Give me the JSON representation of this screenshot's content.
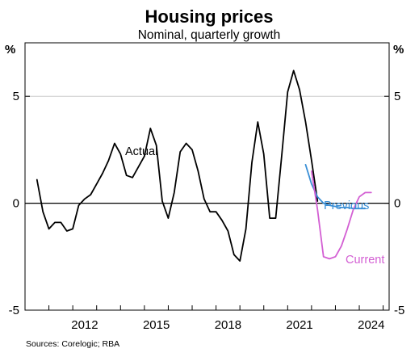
{
  "chart_data": {
    "type": "line",
    "title": "Housing prices",
    "subtitle": "Nominal, quarterly growth",
    "y_unit_left": "%",
    "y_unit_right": "%",
    "ylim": [
      -5,
      7.5
    ],
    "yticks": [
      -5,
      0,
      5
    ],
    "ytick_labels": [
      "-5",
      "0",
      "5"
    ],
    "xlim": [
      2010.0,
      2025.25
    ],
    "xticks": [
      2012,
      2015,
      2018,
      2021,
      2024
    ],
    "xtick_labels": [
      "2012",
      "2015",
      "2018",
      "2021",
      "2024"
    ],
    "grid": "horizontal at 5",
    "source": "Sources:   Corelogic; RBA",
    "colors": {
      "actual": "#000000",
      "previous": "#3a8fd6",
      "current": "#d35fd3",
      "grid": "#cccccc"
    },
    "series": [
      {
        "name": "Actual",
        "x": [
          2010.5,
          2010.75,
          2011.0,
          2011.25,
          2011.5,
          2011.75,
          2012.0,
          2012.25,
          2012.5,
          2012.75,
          2013.0,
          2013.25,
          2013.5,
          2013.75,
          2014.0,
          2014.25,
          2014.5,
          2014.75,
          2015.0,
          2015.25,
          2015.5,
          2015.75,
          2016.0,
          2016.25,
          2016.5,
          2016.75,
          2017.0,
          2017.25,
          2017.5,
          2017.75,
          2018.0,
          2018.25,
          2018.5,
          2018.75,
          2019.0,
          2019.25,
          2019.5,
          2019.75,
          2020.0,
          2020.25,
          2020.5,
          2020.75,
          2021.0,
          2021.25,
          2021.5,
          2021.75,
          2022.0,
          2022.25
        ],
        "values": [
          1.1,
          -0.4,
          -1.2,
          -0.9,
          -0.9,
          -1.3,
          -1.2,
          -0.1,
          0.2,
          0.4,
          0.9,
          1.4,
          2.0,
          2.8,
          2.3,
          1.3,
          1.2,
          1.7,
          2.2,
          3.5,
          2.7,
          0.1,
          -0.7,
          0.5,
          2.4,
          2.8,
          2.5,
          1.5,
          0.2,
          -0.4,
          -0.4,
          -0.8,
          -1.3,
          -2.4,
          -2.7,
          -1.2,
          1.9,
          3.8,
          2.3,
          -0.7,
          -0.7,
          2.2,
          5.2,
          6.2,
          5.3,
          3.8,
          2.0,
          0.1
        ]
      },
      {
        "name": "Previous",
        "x": [
          2021.75,
          2022.0,
          2022.25,
          2022.5,
          2022.75,
          2023.0,
          2023.25,
          2023.5,
          2023.75,
          2024.0,
          2024.25
        ],
        "values": [
          1.8,
          0.9,
          0.3,
          0.0,
          -0.1,
          -0.15,
          -0.2,
          -0.2,
          -0.25,
          -0.25,
          -0.25
        ]
      },
      {
        "name": "Current",
        "x": [
          2022.0,
          2022.25,
          2022.5,
          2022.75,
          2023.0,
          2023.25,
          2023.5,
          2023.75,
          2024.0,
          2024.25,
          2024.5
        ],
        "values": [
          1.5,
          -0.3,
          -2.5,
          -2.6,
          -2.5,
          -2.0,
          -1.2,
          -0.3,
          0.3,
          0.5,
          0.5
        ]
      }
    ],
    "annotations": [
      "Actual",
      "Previous",
      "Current"
    ]
  }
}
